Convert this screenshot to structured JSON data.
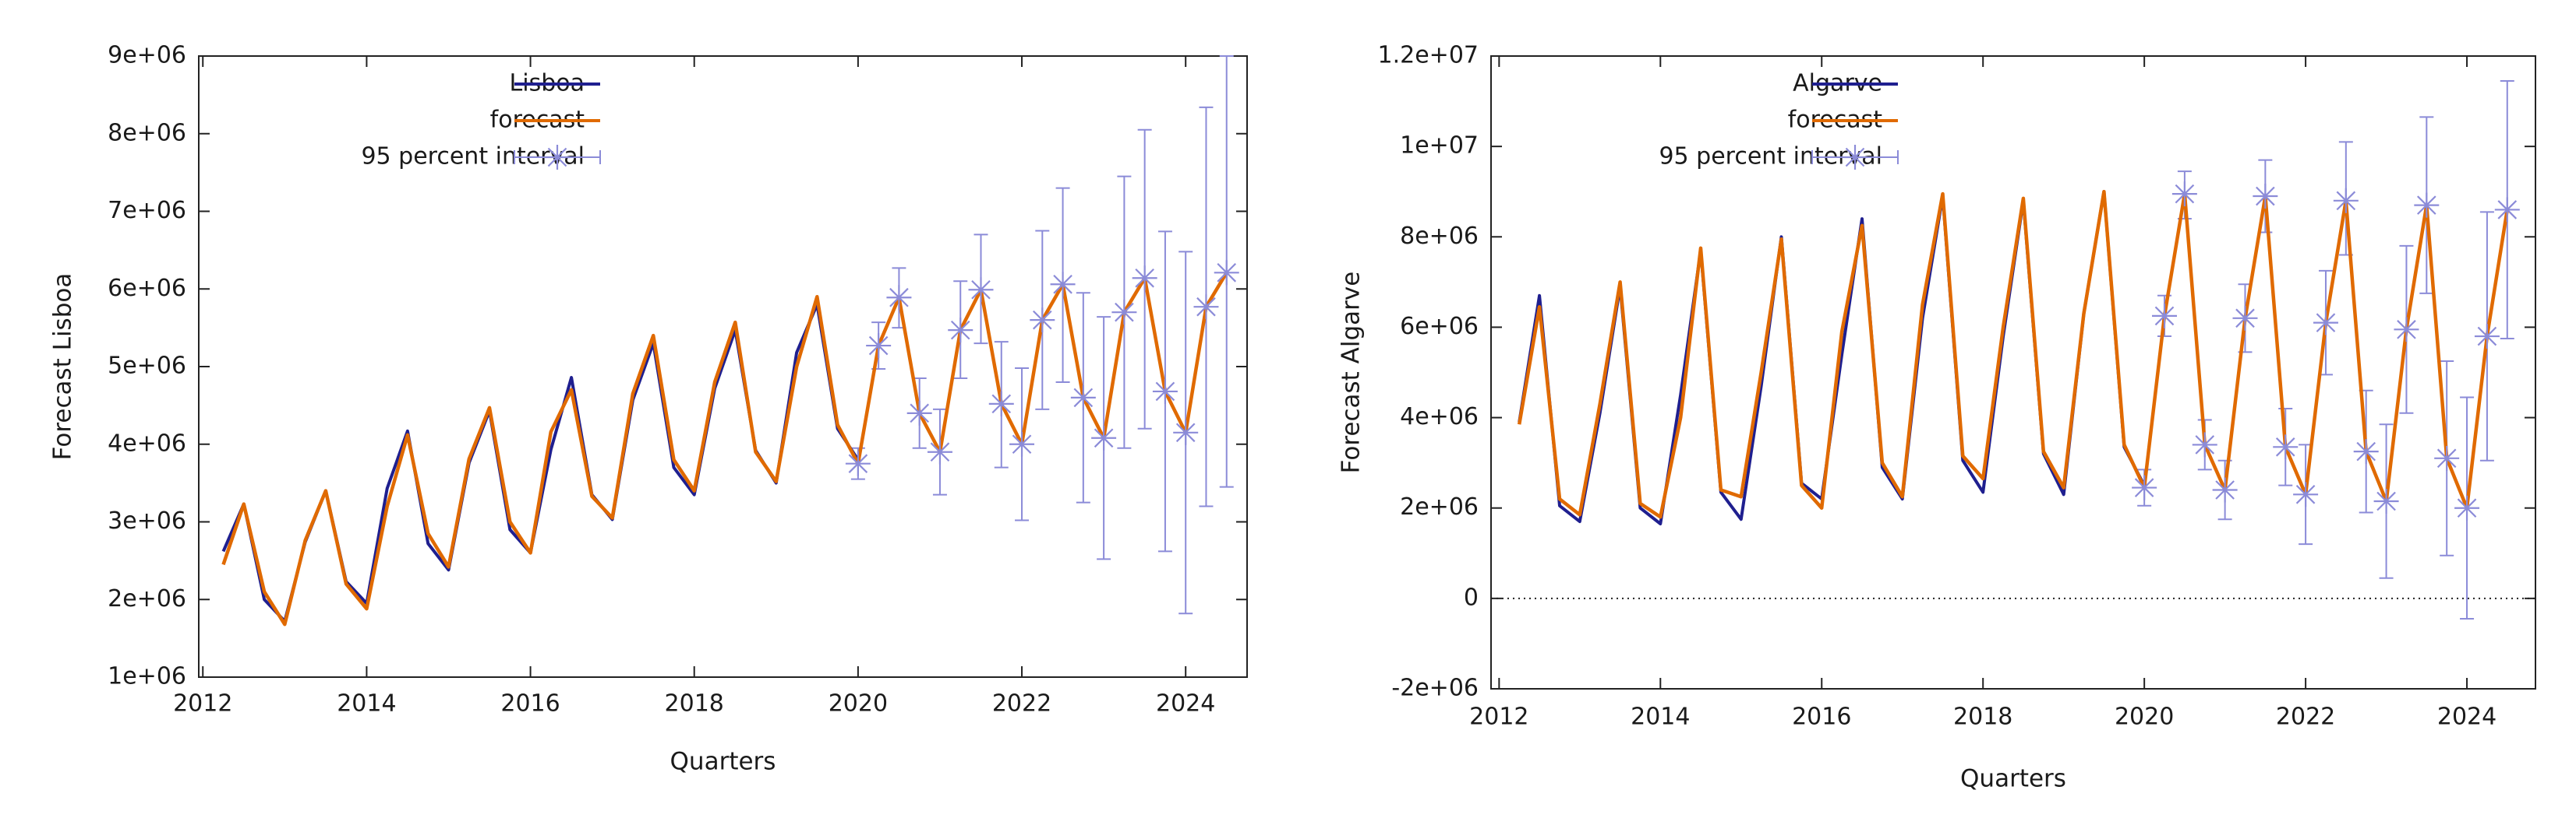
{
  "colors": {
    "actual": "#1f1f8f",
    "forecast": "#e06a00",
    "interval": "#8b8bd8",
    "axis": "#222222",
    "zero_line": "#222222"
  },
  "chart_data": [
    {
      "type": "line",
      "title": "",
      "xlabel": "Quarters",
      "ylabel": "Forecast Lisboa",
      "xlim": [
        2011.95,
        2024.75
      ],
      "ylim": [
        1000000,
        9000000
      ],
      "x_ticks": [
        2012,
        2014,
        2016,
        2018,
        2020,
        2022,
        2024
      ],
      "x_tick_labels": [
        "2012",
        "2014",
        "2016",
        "2018",
        "2020",
        "2022",
        "2024"
      ],
      "y_ticks": [
        1000000,
        2000000,
        3000000,
        4000000,
        5000000,
        6000000,
        7000000,
        8000000,
        9000000
      ],
      "y_tick_labels": [
        "1e+06",
        "2e+06",
        "3e+06",
        "4e+06",
        "5e+06",
        "6e+06",
        "7e+06",
        "8e+06",
        "9e+06"
      ],
      "zero_line": false,
      "legend": {
        "position": "top-left",
        "entries": [
          "Lisboa",
          "forecast",
          "95 percent interval"
        ]
      },
      "series": [
        {
          "name": "Lisboa",
          "x": [
            2012.25,
            2012.5,
            2012.75,
            2013.0,
            2013.25,
            2013.5,
            2013.75,
            2014.0,
            2014.25,
            2014.5,
            2014.75,
            2015.0,
            2015.25,
            2015.5,
            2015.75,
            2016.0,
            2016.25,
            2016.5,
            2016.75,
            2017.0,
            2017.25,
            2017.5,
            2017.75,
            2018.0,
            2018.25,
            2018.5,
            2018.75,
            2019.0,
            2019.25,
            2019.5,
            2019.75,
            2020.0
          ],
          "values": [
            2620000,
            3230000,
            2000000,
            1720000,
            2740000,
            3400000,
            2230000,
            1950000,
            3430000,
            4170000,
            2720000,
            2380000,
            3760000,
            4430000,
            2900000,
            2600000,
            3930000,
            4860000,
            3350000,
            3030000,
            4570000,
            5300000,
            3700000,
            3350000,
            4720000,
            5470000,
            3920000,
            3500000,
            5180000,
            5800000,
            4200000,
            3800000
          ]
        },
        {
          "name": "forecast",
          "x": [
            2012.25,
            2012.5,
            2012.75,
            2013.0,
            2013.25,
            2013.5,
            2013.75,
            2014.0,
            2014.25,
            2014.5,
            2014.75,
            2015.0,
            2015.25,
            2015.5,
            2015.75,
            2016.0,
            2016.25,
            2016.5,
            2016.75,
            2017.0,
            2017.25,
            2017.5,
            2017.75,
            2018.0,
            2018.25,
            2018.5,
            2018.75,
            2019.0,
            2019.25,
            2019.5,
            2019.75,
            2020.0,
            2020.25,
            2020.5,
            2020.75,
            2021.0,
            2021.25,
            2021.5,
            2021.75,
            2022.0,
            2022.25,
            2022.5,
            2022.75,
            2023.0,
            2023.25,
            2023.5,
            2023.75,
            2024.0,
            2024.25,
            2024.5
          ],
          "values": [
            2450000,
            3230000,
            2100000,
            1680000,
            2760000,
            3400000,
            2200000,
            1880000,
            3200000,
            4120000,
            2850000,
            2420000,
            3810000,
            4470000,
            3000000,
            2600000,
            4160000,
            4700000,
            3330000,
            3050000,
            4650000,
            5400000,
            3800000,
            3400000,
            4800000,
            5570000,
            3900000,
            3520000,
            5000000,
            5900000,
            4250000,
            3750000,
            5270000,
            5890000,
            4400000,
            3900000,
            5470000,
            5990000,
            4520000,
            4000000,
            5600000,
            6060000,
            4600000,
            4080000,
            5700000,
            6140000,
            4680000,
            4150000,
            5770000,
            6210000
          ]
        }
      ],
      "intervals": {
        "name": "95 percent interval",
        "x": [
          2020.0,
          2020.25,
          2020.5,
          2020.75,
          2021.0,
          2021.25,
          2021.5,
          2021.75,
          2022.0,
          2022.25,
          2022.5,
          2022.75,
          2023.0,
          2023.25,
          2023.5,
          2023.75,
          2024.0,
          2024.25,
          2024.5
        ],
        "values": [
          3750000,
          5270000,
          5890000,
          4400000,
          3900000,
          5470000,
          5990000,
          4520000,
          4000000,
          5600000,
          6060000,
          4600000,
          4080000,
          5700000,
          6140000,
          4680000,
          4150000,
          5770000,
          6210000
        ],
        "lower": [
          3550000,
          4970000,
          5500000,
          3950000,
          3350000,
          4850000,
          5300000,
          3700000,
          3020000,
          4450000,
          4800000,
          3250000,
          2520000,
          3950000,
          4200000,
          2620000,
          1820000,
          3200000,
          3450000
        ],
        "upper": [
          3950000,
          5570000,
          6270000,
          4850000,
          4450000,
          6100000,
          6700000,
          5320000,
          4980000,
          6750000,
          7300000,
          5950000,
          5640000,
          7450000,
          8050000,
          6740000,
          6480000,
          8340000,
          9000000
        ]
      }
    },
    {
      "type": "line",
      "title": "",
      "xlabel": "Quarters",
      "ylabel": "Forecast Algarve",
      "xlim": [
        2011.9,
        2024.85
      ],
      "ylim": [
        -2000000,
        12000000
      ],
      "x_ticks": [
        2012,
        2014,
        2016,
        2018,
        2020,
        2022,
        2024
      ],
      "x_tick_labels": [
        "2012",
        "2014",
        "2016",
        "2018",
        "2020",
        "2022",
        "2024"
      ],
      "y_ticks": [
        -2000000,
        0,
        2000000,
        4000000,
        6000000,
        8000000,
        10000000,
        12000000
      ],
      "y_tick_labels": [
        "-2e+06",
        "0",
        "2e+06",
        "4e+06",
        "6e+06",
        "8e+06",
        "1e+07",
        "1.2e+07"
      ],
      "zero_line": true,
      "legend": {
        "position": "top-left",
        "entries": [
          "Algarve",
          "forecast",
          "95 percent interval"
        ]
      },
      "series": [
        {
          "name": "Algarve",
          "x": [
            2012.25,
            2012.5,
            2012.75,
            2013.0,
            2013.25,
            2013.5,
            2013.75,
            2014.0,
            2014.25,
            2014.5,
            2014.75,
            2015.0,
            2015.25,
            2015.5,
            2015.75,
            2016.0,
            2016.25,
            2016.5,
            2016.75,
            2017.0,
            2017.25,
            2017.5,
            2017.75,
            2018.0,
            2018.25,
            2018.5,
            2018.75,
            2019.0,
            2019.25,
            2019.5,
            2019.75,
            2020.0
          ],
          "values": [
            3900000,
            6700000,
            2050000,
            1700000,
            4100000,
            6900000,
            2000000,
            1650000,
            4500000,
            7700000,
            2350000,
            1750000,
            4700000,
            8000000,
            2550000,
            2200000,
            5400000,
            8400000,
            2900000,
            2200000,
            6200000,
            8900000,
            3050000,
            2350000,
            5800000,
            8800000,
            3200000,
            2300000,
            6300000,
            9000000,
            3350000,
            2500000
          ]
        },
        {
          "name": "forecast",
          "x": [
            2012.25,
            2012.5,
            2012.75,
            2013.0,
            2013.25,
            2013.5,
            2013.75,
            2014.0,
            2014.25,
            2014.5,
            2014.75,
            2015.0,
            2015.25,
            2015.5,
            2015.75,
            2016.0,
            2016.25,
            2016.5,
            2016.75,
            2017.0,
            2017.25,
            2017.5,
            2017.75,
            2018.0,
            2018.25,
            2018.5,
            2018.75,
            2019.0,
            2019.25,
            2019.5,
            2019.75,
            2020.0,
            2020.25,
            2020.5,
            2020.75,
            2021.0,
            2021.25,
            2021.5,
            2021.75,
            2022.0,
            2022.25,
            2022.5,
            2022.75,
            2023.0,
            2023.25,
            2023.5,
            2023.75,
            2024.0,
            2024.25,
            2024.5
          ],
          "values": [
            3850000,
            6450000,
            2200000,
            1850000,
            4300000,
            7000000,
            2100000,
            1800000,
            4000000,
            7750000,
            2400000,
            2250000,
            5000000,
            7950000,
            2500000,
            2000000,
            5900000,
            8250000,
            3000000,
            2250000,
            6500000,
            8950000,
            3150000,
            2650000,
            6000000,
            8850000,
            3250000,
            2450000,
            6300000,
            9000000,
            3400000,
            2450000,
            6250000,
            8950000,
            3400000,
            2400000,
            6200000,
            8900000,
            3350000,
            2300000,
            6100000,
            8800000,
            3250000,
            2150000,
            5950000,
            8700000,
            3100000,
            2000000,
            5800000,
            8600000
          ]
        }
      ],
      "intervals": {
        "name": "95 percent interval",
        "x": [
          2020.0,
          2020.25,
          2020.5,
          2020.75,
          2021.0,
          2021.25,
          2021.5,
          2021.75,
          2022.0,
          2022.25,
          2022.5,
          2022.75,
          2023.0,
          2023.25,
          2023.5,
          2023.75,
          2024.0,
          2024.25,
          2024.5
        ],
        "values": [
          2450000,
          6250000,
          8950000,
          3400000,
          2400000,
          6200000,
          8900000,
          3350000,
          2300000,
          6100000,
          8800000,
          3250000,
          2150000,
          5950000,
          8700000,
          3100000,
          2000000,
          5800000,
          8600000
        ],
        "lower": [
          2050000,
          5800000,
          8400000,
          2850000,
          1750000,
          5450000,
          8100000,
          2500000,
          1200000,
          4950000,
          7600000,
          1900000,
          450000,
          4100000,
          6750000,
          950000,
          -450000,
          3050000,
          5750000
        ],
        "upper": [
          2850000,
          6700000,
          9450000,
          3950000,
          3050000,
          6950000,
          9700000,
          4200000,
          3400000,
          7250000,
          10100000,
          4600000,
          3850000,
          7800000,
          10650000,
          5250000,
          4450000,
          8550000,
          11450000
        ]
      }
    }
  ]
}
